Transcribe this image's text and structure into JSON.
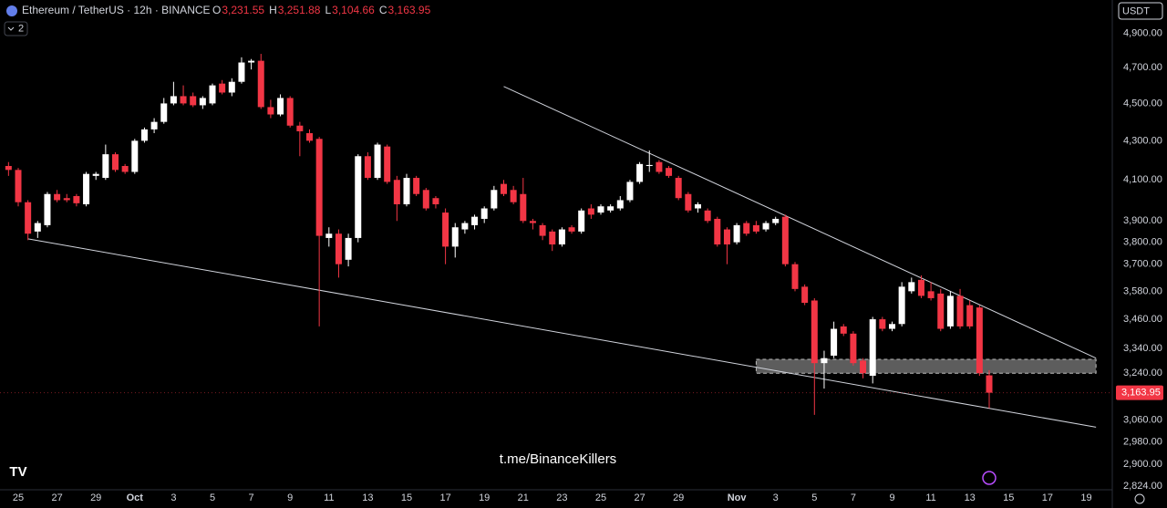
{
  "header": {
    "symbol": "Ethereum / TetherUS · 12h · BINANCE",
    "ohlc": [
      {
        "label": "O",
        "value": "3,231.55"
      },
      {
        "label": "H",
        "value": "3,251.88"
      },
      {
        "label": "L",
        "value": "3,104.66"
      },
      {
        "label": "C",
        "value": "3,163.95"
      }
    ],
    "indicator_count": "2",
    "currency": "USDT",
    "watermark": "t.me/BinanceKillers"
  },
  "chart_data": {
    "type": "candlestick",
    "log_scale": true,
    "grid": false,
    "up_color": "#ffffff",
    "down_color": "#f23645",
    "categories": [
      null,
      "25",
      null,
      null,
      null,
      "27",
      null,
      null,
      null,
      "29",
      null,
      null,
      null,
      "Oct",
      null,
      null,
      null,
      "3",
      null,
      null,
      null,
      "5",
      null,
      null,
      null,
      "7",
      null,
      null,
      null,
      "9",
      null,
      null,
      null,
      "11",
      null,
      null,
      null,
      "13",
      null,
      null,
      null,
      "15",
      null,
      null,
      null,
      "17",
      null,
      null,
      null,
      "19",
      null,
      null,
      null,
      "21",
      null,
      null,
      null,
      "23",
      null,
      null,
      null,
      "25",
      null,
      null,
      null,
      "27",
      null,
      null,
      null,
      "29",
      null,
      null,
      null,
      null,
      null,
      "Nov",
      null,
      null,
      null,
      "3",
      null,
      null,
      null,
      "5",
      null,
      null,
      null,
      "7",
      null,
      null,
      null,
      "9",
      null,
      null,
      null,
      "11",
      null,
      null,
      null,
      "13",
      null,
      null,
      null,
      "15",
      null,
      null,
      null,
      "17",
      null,
      null,
      null,
      "19",
      null
    ],
    "open": [
      4170,
      4150,
      3990,
      3850,
      3880,
      4030,
      4010,
      4020,
      3980,
      4120,
      4110,
      4230,
      4170,
      4140,
      4300,
      4360,
      4400,
      4500,
      4540,
      4540,
      4490,
      4500,
      4610,
      4560,
      4620,
      4730,
      4740,
      4480,
      4440,
      4530,
      4380,
      4340,
      4310,
      3820,
      3840,
      3720,
      3820,
      4220,
      4110,
      4270,
      4100,
      3980,
      4110,
      4050,
      4010,
      3940,
      3780,
      3860,
      3880,
      3910,
      3960,
      4080,
      4050,
      4030,
      3900,
      3880,
      3850,
      3790,
      3870,
      3850,
      3960,
      3940,
      3950,
      3960,
      4000,
      4090,
      4170,
      4190,
      4160,
      4110,
      4030,
      3960,
      3950,
      3910,
      3860,
      3800,
      3890,
      3880,
      3860,
      3890,
      3920,
      3700,
      3600,
      3540,
      3280,
      3310,
      3430,
      3400,
      3290,
      3230,
      3460,
      3420,
      3440,
      3580,
      3630,
      3580,
      3570,
      3430,
      3560,
      3520,
      3510,
      3231.55,
      null,
      null,
      null,
      null,
      null,
      null,
      null,
      null,
      null,
      null,
      null
    ],
    "high": [
      4190,
      4160,
      4000,
      3900,
      4040,
      4050,
      4030,
      4030,
      4140,
      4140,
      4280,
      4240,
      4180,
      4310,
      4370,
      4420,
      4530,
      4620,
      4600,
      4560,
      4540,
      4610,
      4630,
      4640,
      4760,
      4750,
      4780,
      4520,
      4550,
      4540,
      4400,
      4360,
      4320,
      3870,
      3860,
      3840,
      4230,
      4240,
      4290,
      4280,
      4120,
      4130,
      4120,
      4060,
      4020,
      3960,
      3890,
      3900,
      3930,
      3970,
      4070,
      4100,
      4070,
      4110,
      3910,
      3890,
      3860,
      3870,
      3880,
      3960,
      3980,
      3980,
      3980,
      4020,
      4100,
      4190,
      4250,
      4200,
      4170,
      4120,
      4040,
      3990,
      3960,
      3920,
      3870,
      3890,
      3900,
      3900,
      3900,
      3920,
      3930,
      3710,
      3610,
      3550,
      3330,
      3450,
      3440,
      3410,
      3300,
      3470,
      3470,
      3450,
      3620,
      3640,
      3650,
      3620,
      3590,
      3580,
      3590,
      3540,
      3520,
      3251.88,
      null,
      null,
      null,
      null,
      null,
      null,
      null,
      null,
      null,
      null,
      null
    ],
    "low": [
      4120,
      3970,
      3810,
      3820,
      3870,
      3990,
      3990,
      3970,
      3970,
      4100,
      4100,
      4140,
      4130,
      4130,
      4290,
      4340,
      4390,
      4490,
      4490,
      4480,
      4470,
      4490,
      4550,
      4540,
      4610,
      4690,
      4470,
      4420,
      4430,
      4370,
      4220,
      4290,
      3430,
      3780,
      3640,
      3690,
      3800,
      4100,
      4100,
      4080,
      3900,
      3970,
      4020,
      3950,
      3960,
      3700,
      3730,
      3840,
      3860,
      3890,
      3950,
      4020,
      3980,
      3890,
      3860,
      3810,
      3760,
      3780,
      3840,
      3840,
      3910,
      3930,
      3940,
      3950,
      3990,
      4080,
      4140,
      4130,
      4110,
      4000,
      3940,
      3940,
      3890,
      3780,
      3700,
      3790,
      3830,
      3840,
      3850,
      3880,
      3690,
      3580,
      3520,
      3080,
      3180,
      3300,
      3390,
      3270,
      3220,
      3200,
      3410,
      3410,
      3430,
      3570,
      3550,
      3540,
      3410,
      3420,
      3420,
      3420,
      3230,
      3104.66,
      null,
      null,
      null,
      null,
      null,
      null,
      null,
      null,
      null,
      null,
      null
    ],
    "close": [
      4150,
      3990,
      3840,
      3890,
      4030,
      4000,
      4000,
      3985,
      4130,
      4130,
      4230,
      4150,
      4140,
      4300,
      4360,
      4400,
      4500,
      4540,
      4500,
      4490,
      4530,
      4600,
      4560,
      4620,
      4730,
      4740,
      4480,
      4440,
      4530,
      4380,
      4350,
      4300,
      3830,
      3840,
      3700,
      3820,
      4220,
      4110,
      4280,
      4090,
      3980,
      4110,
      4030,
      3960,
      3980,
      3780,
      3870,
      3890,
      3920,
      3960,
      4050,
      4030,
      3990,
      3900,
      3890,
      3830,
      3790,
      3860,
      3850,
      3950,
      3930,
      3970,
      3970,
      4000,
      4090,
      4180,
      4175,
      4140,
      4120,
      4010,
      3950,
      3980,
      3900,
      3790,
      3790,
      3880,
      3840,
      3850,
      3890,
      3910,
      3700,
      3590,
      3530,
      3280,
      3300,
      3420,
      3400,
      3280,
      3240,
      3460,
      3420,
      3440,
      3600,
      3620,
      3560,
      3550,
      3420,
      3560,
      3430,
      3430,
      3240,
      3163.95,
      null,
      null,
      null,
      null,
      null,
      null,
      null,
      null,
      null,
      null,
      null
    ],
    "last_price_label": "3,163.95",
    "ylim": [
      2802,
      5104
    ],
    "yticks": [
      {
        "value": 4900,
        "label": "4,900.00"
      },
      {
        "value": 4700,
        "label": "4,700.00"
      },
      {
        "value": 4500,
        "label": "4,500.00"
      },
      {
        "value": 4300,
        "label": "4,300.00"
      },
      {
        "value": 4100,
        "label": "4,100.00"
      },
      {
        "value": 3900,
        "label": "3,900.00"
      },
      {
        "value": 3800,
        "label": "3,800.00"
      },
      {
        "value": 3700,
        "label": "3,700.00"
      },
      {
        "value": 3580,
        "label": "3,580.00"
      },
      {
        "value": 3460,
        "label": "3,460.00"
      },
      {
        "value": 3340,
        "label": "3,340.00"
      },
      {
        "value": 3240,
        "label": "3,240.00"
      },
      {
        "value": 3060,
        "label": "3,060.00"
      },
      {
        "value": 2980,
        "label": "2,980.00"
      },
      {
        "value": 2900,
        "label": "2,900.00"
      },
      {
        "value": 2824,
        "label": "2,824.00"
      }
    ],
    "trendlines": [
      {
        "from": [
          51,
          4594
        ],
        "to": [
          112,
          3300
        ]
      },
      {
        "from": [
          2,
          3816
        ],
        "to": [
          112,
          3034
        ]
      }
    ],
    "zone": {
      "from": 77,
      "to": 112,
      "top": 3295,
      "bottom": 3240
    }
  }
}
